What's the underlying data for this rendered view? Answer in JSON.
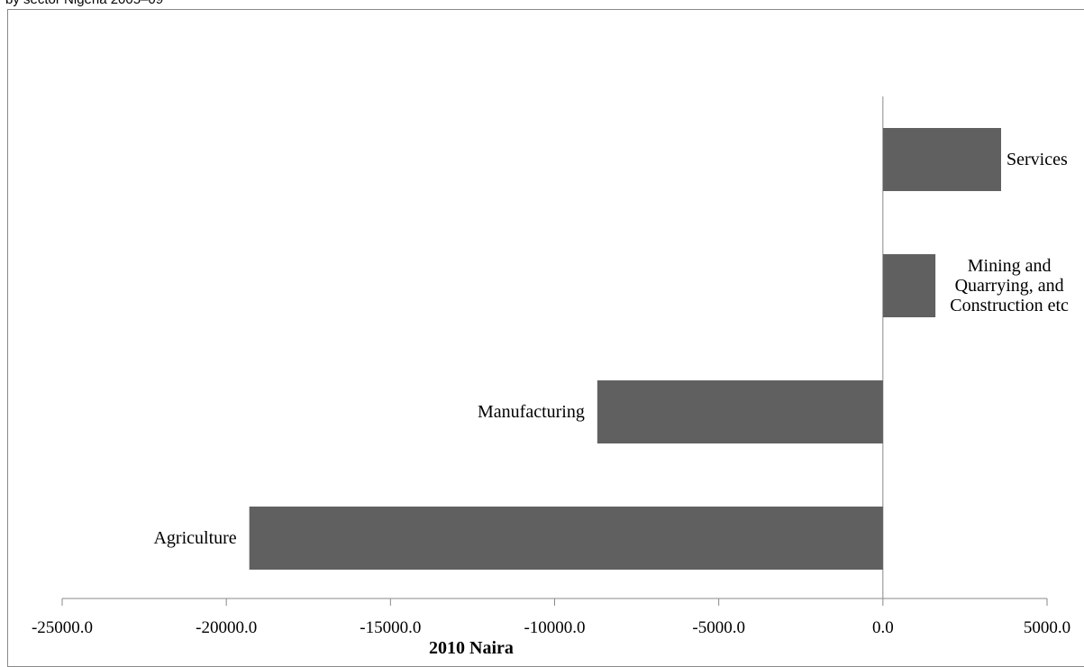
{
  "caption": "by sector Nigeria 2005–09",
  "chart_data": {
    "type": "bar",
    "orientation": "horizontal",
    "categories": [
      "Services",
      "Mining and Quarrying, and Construction etc",
      "Manufacturing",
      "Agriculture"
    ],
    "category_label_lines": [
      [
        "Services"
      ],
      [
        "Mining and",
        "Quarrying, and",
        "Construction etc"
      ],
      [
        "Manufacturing"
      ],
      [
        "Agriculture"
      ]
    ],
    "values": [
      3600,
      1600,
      -8700,
      -19300
    ],
    "xlabel": "2010 Naira",
    "xlim": [
      -25000,
      5000
    ],
    "xticks": [
      -25000,
      -20000,
      -15000,
      -10000,
      -5000,
      0,
      5000
    ],
    "xtick_labels": [
      "-25000.0",
      "-20000.0",
      "-15000.0",
      "-10000.0",
      "-5000.0",
      "0.0",
      "5000.0"
    ],
    "grid": false,
    "bar_color": "#606060",
    "axis_color": "#898989"
  }
}
